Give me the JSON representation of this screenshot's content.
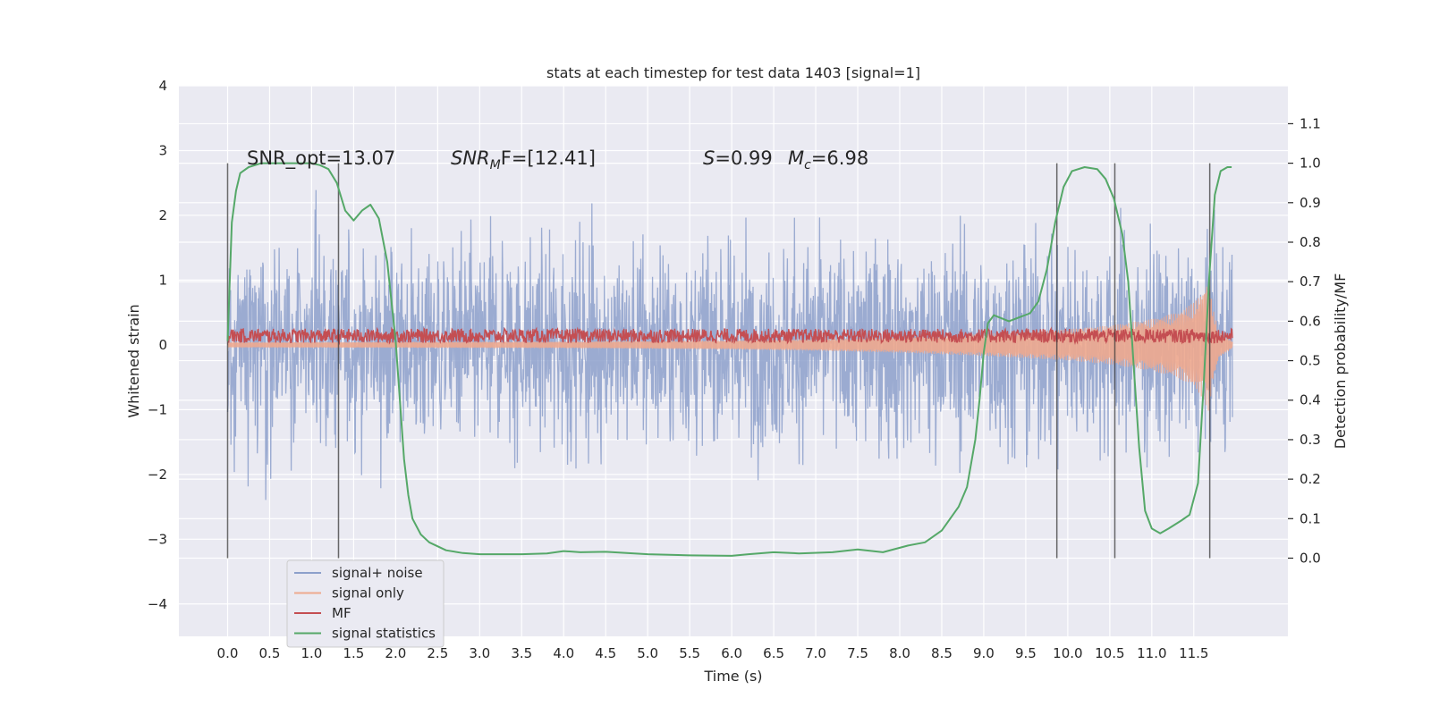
{
  "chart_data": {
    "type": "line",
    "title": "stats at each timestep for test data 1403 [signal=1]",
    "xlabel": "Time (s)",
    "ylabel": "Whitened strain",
    "y2label": "Detection probability/MF",
    "xlim": [
      -0.58,
      12.62
    ],
    "ylim": [
      -4.5,
      4.0
    ],
    "y2lim": [
      -0.198,
      1.196
    ],
    "xticks": [
      0.0,
      0.5,
      1.0,
      1.5,
      2.0,
      2.5,
      3.0,
      3.5,
      4.0,
      4.5,
      5.0,
      5.5,
      6.0,
      6.5,
      7.0,
      7.5,
      8.0,
      8.5,
      9.0,
      9.5,
      10.0,
      10.5,
      11.0,
      11.5
    ],
    "xtick_labels": [
      "0.0",
      "0.5",
      "1.0",
      "1.5",
      "2.0",
      "2.5",
      "3.0",
      "3.5",
      "4.0",
      "4.5",
      "5.0",
      "5.5",
      "6.0",
      "6.5",
      "7.0",
      "7.5",
      "8.0",
      "8.5",
      "9.0",
      "9.5",
      "10.0",
      "10.5",
      "11.0",
      "11.5"
    ],
    "yticks": [
      -4,
      -3,
      -2,
      -1,
      0,
      1,
      2,
      3,
      4
    ],
    "ytick_labels": [
      "−4",
      "−3",
      "−2",
      "−1",
      "0",
      "1",
      "2",
      "3",
      "4"
    ],
    "y2ticks": [
      0.0,
      0.1,
      0.2,
      0.3,
      0.4,
      0.5,
      0.6,
      0.7,
      0.8,
      0.9,
      1.0,
      1.1
    ],
    "y2tick_labels": [
      "0.0",
      "0.1",
      "0.2",
      "0.3",
      "0.4",
      "0.5",
      "0.6",
      "0.7",
      "0.8",
      "0.9",
      "1.0",
      "1.1"
    ],
    "grid": true,
    "legend_placement": "lower-left",
    "legend": [
      {
        "label": "signal+ noise",
        "color": "#8da0cb"
      },
      {
        "label": "signal only",
        "color": "#eea98e"
      },
      {
        "label": "MF",
        "color": "#c44e52"
      },
      {
        "label": "signal statistics",
        "color": "#55a868"
      }
    ],
    "annotations": {
      "snr_opt": "SNR_opt=13.07",
      "snr_mf_label": "SNR",
      "snr_mf_sub": "M",
      "snr_mf_rest": "F=[12.41]",
      "s_label": "S",
      "s_value": "=0.99",
      "mc_label": "M",
      "mc_sub": "c",
      "mc_value": "=6.98"
    },
    "vertical_lines": [
      0.0,
      1.32,
      9.87,
      10.56,
      11.69
    ],
    "noise_envelope": [
      {
        "x": 0.0,
        "y": 1.5
      },
      {
        "x": 2.0,
        "y": 1.5
      },
      {
        "x": 4.0,
        "y": 1.55
      },
      {
        "x": 6.0,
        "y": 1.5
      },
      {
        "x": 8.0,
        "y": 1.55
      },
      {
        "x": 10.0,
        "y": 1.55
      },
      {
        "x": 11.96,
        "y": 1.5
      }
    ],
    "signal_envelope": [
      {
        "x": 0.0,
        "y": 0.04
      },
      {
        "x": 4.0,
        "y": 0.05
      },
      {
        "x": 6.0,
        "y": 0.07
      },
      {
        "x": 7.0,
        "y": 0.09
      },
      {
        "x": 8.0,
        "y": 0.12
      },
      {
        "x": 9.0,
        "y": 0.17
      },
      {
        "x": 10.0,
        "y": 0.24
      },
      {
        "x": 10.5,
        "y": 0.3
      },
      {
        "x": 11.0,
        "y": 0.4
      },
      {
        "x": 11.3,
        "y": 0.5
      },
      {
        "x": 11.5,
        "y": 0.65
      },
      {
        "x": 11.62,
        "y": 0.85
      },
      {
        "x": 11.68,
        "y": 1.05
      },
      {
        "x": 11.72,
        "y": 0.6
      },
      {
        "x": 11.8,
        "y": 0.2
      },
      {
        "x": 11.96,
        "y": 0.05
      }
    ],
    "mf_band": [
      0.03,
      0.25
    ],
    "series": [
      {
        "name": "signal statistics",
        "color": "#55a868",
        "points": [
          {
            "x": 0.0,
            "y": 0.55
          },
          {
            "x": 0.05,
            "y": 0.85
          },
          {
            "x": 0.1,
            "y": 0.93
          },
          {
            "x": 0.15,
            "y": 0.975
          },
          {
            "x": 0.25,
            "y": 0.99
          },
          {
            "x": 0.4,
            "y": 1.0
          },
          {
            "x": 0.6,
            "y": 1.0
          },
          {
            "x": 0.8,
            "y": 1.0
          },
          {
            "x": 1.0,
            "y": 1.0
          },
          {
            "x": 1.1,
            "y": 0.995
          },
          {
            "x": 1.2,
            "y": 0.985
          },
          {
            "x": 1.3,
            "y": 0.95
          },
          {
            "x": 1.4,
            "y": 0.88
          },
          {
            "x": 1.5,
            "y": 0.855
          },
          {
            "x": 1.6,
            "y": 0.88
          },
          {
            "x": 1.7,
            "y": 0.895
          },
          {
            "x": 1.8,
            "y": 0.86
          },
          {
            "x": 1.9,
            "y": 0.75
          },
          {
            "x": 2.0,
            "y": 0.55
          },
          {
            "x": 2.05,
            "y": 0.4
          },
          {
            "x": 2.1,
            "y": 0.25
          },
          {
            "x": 2.15,
            "y": 0.16
          },
          {
            "x": 2.2,
            "y": 0.1
          },
          {
            "x": 2.3,
            "y": 0.06
          },
          {
            "x": 2.4,
            "y": 0.04
          },
          {
            "x": 2.6,
            "y": 0.02
          },
          {
            "x": 2.8,
            "y": 0.013
          },
          {
            "x": 3.0,
            "y": 0.01
          },
          {
            "x": 3.5,
            "y": 0.01
          },
          {
            "x": 3.8,
            "y": 0.012
          },
          {
            "x": 4.0,
            "y": 0.018
          },
          {
            "x": 4.2,
            "y": 0.015
          },
          {
            "x": 4.5,
            "y": 0.016
          },
          {
            "x": 5.0,
            "y": 0.01
          },
          {
            "x": 5.5,
            "y": 0.007
          },
          {
            "x": 6.0,
            "y": 0.006
          },
          {
            "x": 6.2,
            "y": 0.01
          },
          {
            "x": 6.5,
            "y": 0.015
          },
          {
            "x": 6.8,
            "y": 0.012
          },
          {
            "x": 7.2,
            "y": 0.015
          },
          {
            "x": 7.5,
            "y": 0.022
          },
          {
            "x": 7.8,
            "y": 0.015
          },
          {
            "x": 8.1,
            "y": 0.032
          },
          {
            "x": 8.3,
            "y": 0.04
          },
          {
            "x": 8.5,
            "y": 0.07
          },
          {
            "x": 8.7,
            "y": 0.13
          },
          {
            "x": 8.8,
            "y": 0.18
          },
          {
            "x": 8.9,
            "y": 0.3
          },
          {
            "x": 8.95,
            "y": 0.4
          },
          {
            "x": 9.0,
            "y": 0.52
          },
          {
            "x": 9.05,
            "y": 0.595
          },
          {
            "x": 9.12,
            "y": 0.615
          },
          {
            "x": 9.3,
            "y": 0.6
          },
          {
            "x": 9.55,
            "y": 0.62
          },
          {
            "x": 9.65,
            "y": 0.65
          },
          {
            "x": 9.75,
            "y": 0.73
          },
          {
            "x": 9.85,
            "y": 0.85
          },
          {
            "x": 9.95,
            "y": 0.94
          },
          {
            "x": 10.05,
            "y": 0.98
          },
          {
            "x": 10.2,
            "y": 0.99
          },
          {
            "x": 10.35,
            "y": 0.985
          },
          {
            "x": 10.45,
            "y": 0.96
          },
          {
            "x": 10.55,
            "y": 0.91
          },
          {
            "x": 10.65,
            "y": 0.82
          },
          {
            "x": 10.72,
            "y": 0.7
          },
          {
            "x": 10.78,
            "y": 0.5
          },
          {
            "x": 10.85,
            "y": 0.28
          },
          {
            "x": 10.92,
            "y": 0.12
          },
          {
            "x": 11.0,
            "y": 0.075
          },
          {
            "x": 11.1,
            "y": 0.063
          },
          {
            "x": 11.2,
            "y": 0.075
          },
          {
            "x": 11.35,
            "y": 0.095
          },
          {
            "x": 11.45,
            "y": 0.11
          },
          {
            "x": 11.55,
            "y": 0.19
          },
          {
            "x": 11.62,
            "y": 0.45
          },
          {
            "x": 11.68,
            "y": 0.7
          },
          {
            "x": 11.75,
            "y": 0.92
          },
          {
            "x": 11.82,
            "y": 0.98
          },
          {
            "x": 11.9,
            "y": 0.99
          },
          {
            "x": 11.95,
            "y": 0.99
          }
        ]
      }
    ]
  }
}
